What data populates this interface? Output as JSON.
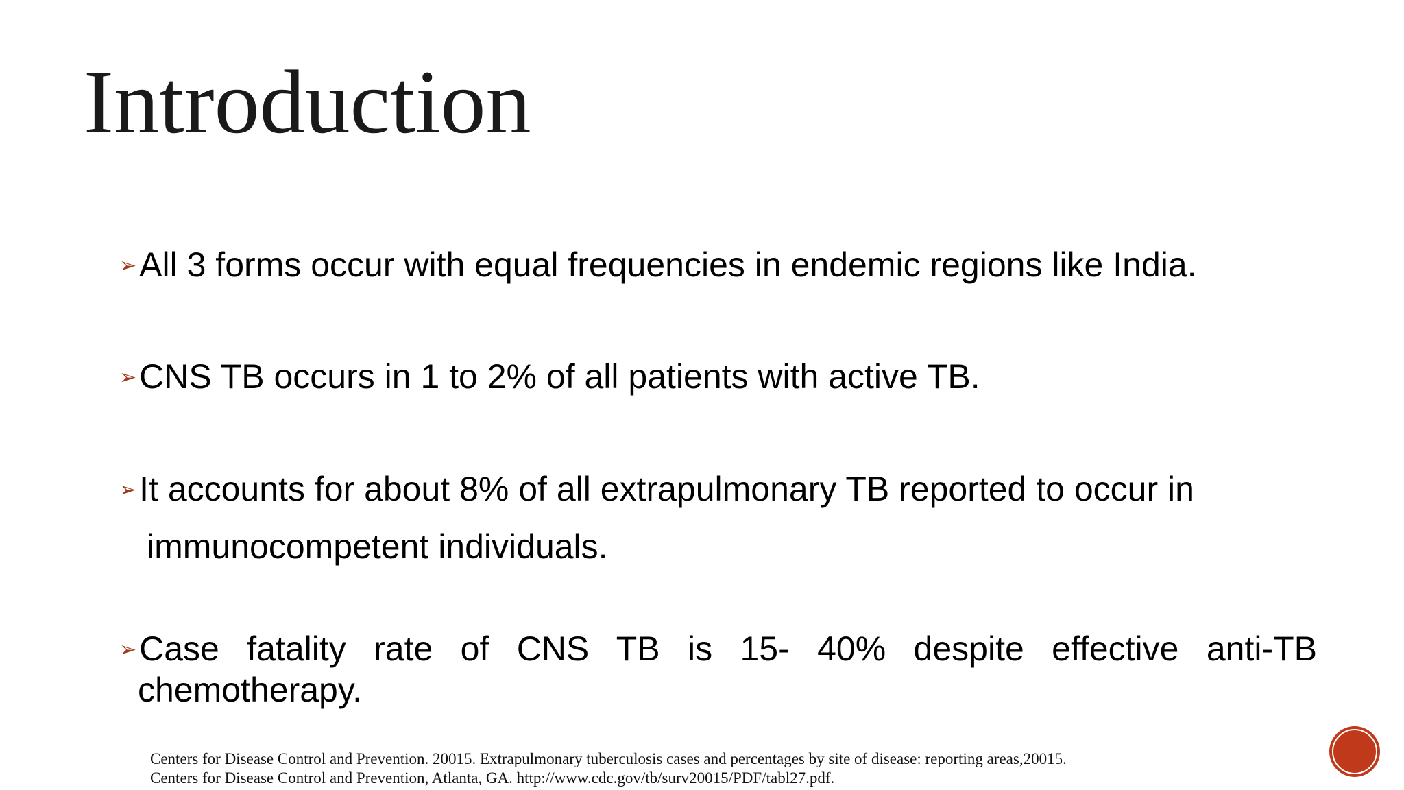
{
  "header": {
    "title": "Introduction"
  },
  "bullets": [
    "All 3 forms occur with equal frequencies in endemic regions like India.",
    "CNS TB occurs in 1 to 2% of all patients with active TB.",
    "It accounts for about 8% of all extrapulmonary TB reported to occur in immunocompetent individuals.",
    "Case fatality rate of CNS TB is 15- 40% despite effective anti-TB chemotherapy."
  ],
  "references": [
    "Centers for Disease Control and Prevention. 20015. Extrapulmonary tuberculosis cases and percentages by site of disease: reporting areas,20015.",
    "Centers for Disease Control and Prevention, Atlanta, GA. http://www.cdc.gov/tb/surv20015/PDF/tabl27.pdf."
  ]
}
